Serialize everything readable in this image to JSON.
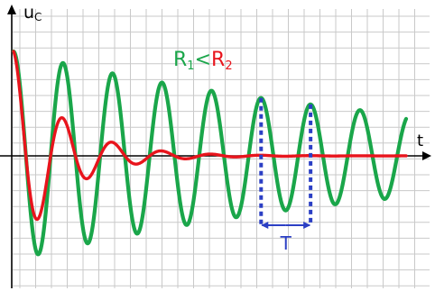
{
  "chart_data": {
    "type": "line",
    "title": "",
    "xlabel": "t",
    "ylabel": "uc",
    "ylabel_main": "u",
    "ylabel_sub": "C",
    "legend": {
      "series1_main": "R",
      "series1_sub": "1",
      "relation": "<",
      "series2_main": "R",
      "series2_sub": "2",
      "placement": "top-center"
    },
    "grid": true,
    "xlim": [
      0,
      18
    ],
    "ylim": [
      -5,
      5
    ],
    "series": [
      {
        "name": "R1",
        "color": "#1aa64a",
        "amplitude": 4,
        "period": 2.27,
        "decay": 0.052,
        "phase": 0
      },
      {
        "name": "R2",
        "color": "#e8141c",
        "amplitude": 4,
        "period": 2.27,
        "decay": 0.45,
        "phase": 0
      }
    ],
    "annotation": {
      "label": "T",
      "color": "#2b3fc4",
      "from_peak": 5,
      "to_peak": 6
    },
    "colors": {
      "axis": "#000000",
      "grid": "#c9c9c9"
    }
  }
}
